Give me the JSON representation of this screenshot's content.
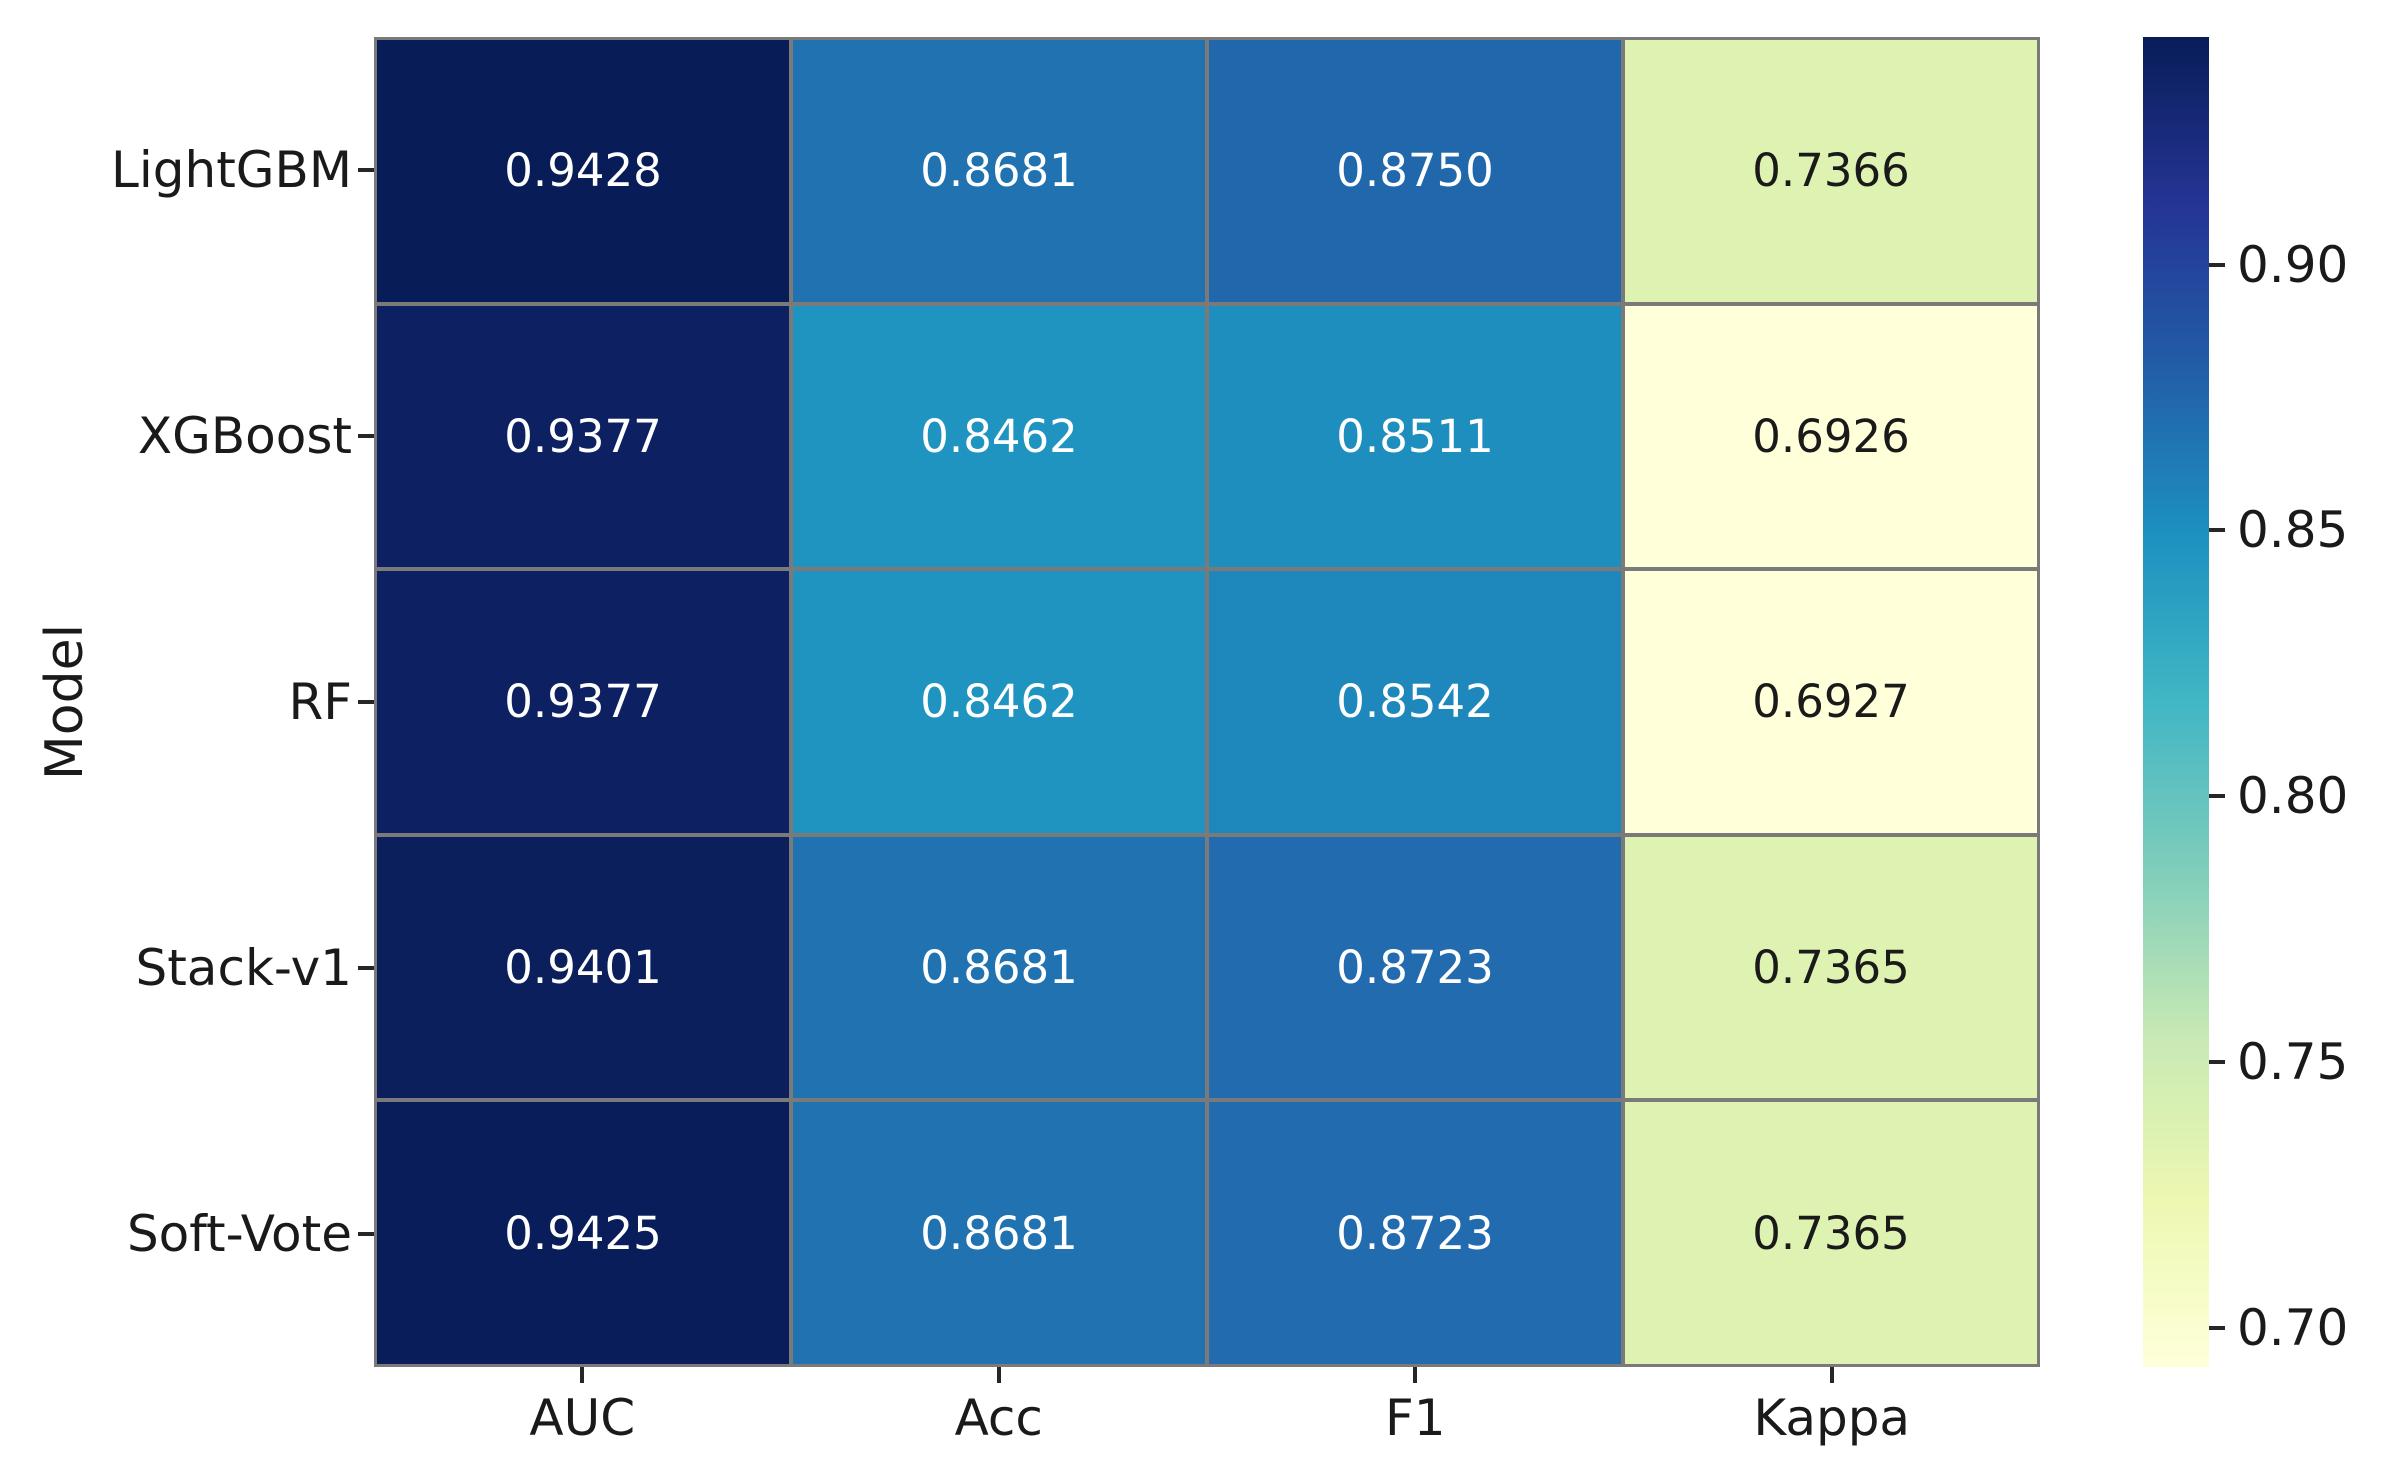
{
  "figure": {
    "background": "#ffffff",
    "grid_line_color": "#7a7a7a",
    "tick_mark_color": "#262626",
    "label_color": "#1a1a1a",
    "annot_light_color": "#ffffff",
    "annot_dark_color": "#1a1a1a"
  },
  "chart_data": {
    "type": "heatmap",
    "title": "",
    "xlabel": "",
    "ylabel": "Model",
    "rows": [
      "LightGBM",
      "XGBoost",
      "RF",
      "Stack-v1",
      "Soft-Vote"
    ],
    "columns": [
      "AUC",
      "Acc",
      "F1",
      "Kappa"
    ],
    "values": [
      [
        0.9428,
        0.8681,
        0.875,
        0.7366
      ],
      [
        0.9377,
        0.8462,
        0.8511,
        0.6926
      ],
      [
        0.9377,
        0.8462,
        0.8542,
        0.6927
      ],
      [
        0.9401,
        0.8681,
        0.8723,
        0.7365
      ],
      [
        0.9425,
        0.8681,
        0.8723,
        0.7365
      ]
    ],
    "value_decimals": 4,
    "vmin": 0.6926,
    "vmax": 0.9428,
    "colormap_name": "YlGnBu",
    "colormap_stops": [
      "#ffffd9",
      "#edf8b1",
      "#c7e9b4",
      "#7fcdbb",
      "#41b6c4",
      "#1d91c0",
      "#225ea8",
      "#253494",
      "#081d58"
    ],
    "colorbar": {
      "tick_labels": [
        "0.90",
        "0.85",
        "0.80",
        "0.75",
        "0.70"
      ],
      "tick_values": [
        0.9,
        0.85,
        0.8,
        0.75,
        0.7
      ],
      "position": "right"
    },
    "grid_on": true,
    "annotations_on": true
  }
}
